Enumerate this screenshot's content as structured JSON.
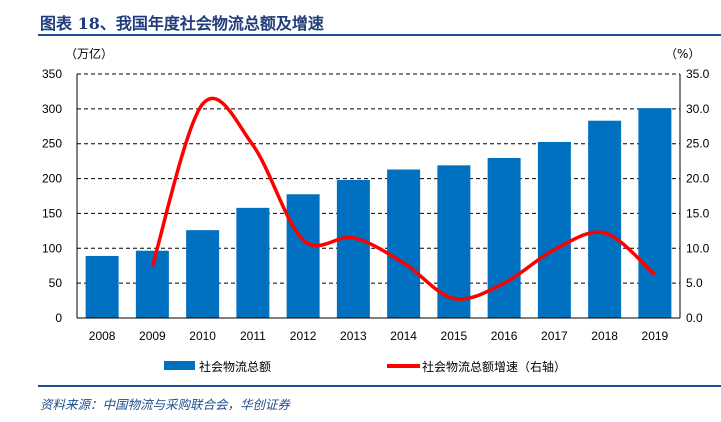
{
  "header": {
    "title": "图表 18、我国年度社会物流总额及增速"
  },
  "source": "资料来源：中国物流与采购联合会，华创证券",
  "chart_data": {
    "type": "bar+line",
    "title": "",
    "categories": [
      "2008",
      "2009",
      "2010",
      "2011",
      "2012",
      "2013",
      "2014",
      "2015",
      "2016",
      "2017",
      "2018",
      "2019"
    ],
    "series": [
      {
        "name": "社会物流总额",
        "type": "bar",
        "axis": "left",
        "color": "#0070C0",
        "values": [
          89,
          96.5,
          126,
          158,
          177.5,
          198,
          213,
          219,
          229.5,
          252.5,
          283,
          301
        ]
      },
      {
        "name": "社会物流总额增速（右轴）",
        "type": "line",
        "axis": "right",
        "color": "#FF0000",
        "values": [
          null,
          7.4,
          30.7,
          24.8,
          11.2,
          11.5,
          7.9,
          2.8,
          5.0,
          9.8,
          12.2,
          6.2
        ]
      }
    ],
    "ylabel_left": "（万亿）",
    "ylabel_right": "（%）",
    "ylim_left": [
      0,
      350
    ],
    "ylim_right": [
      0,
      35
    ],
    "yticks_left": [
      "0",
      "50",
      "100",
      "150",
      "200",
      "250",
      "300",
      "350"
    ],
    "yticks_right": [
      "0.0",
      "5.0",
      "10.0",
      "15.0",
      "20.0",
      "25.0",
      "30.0",
      "35.0"
    ],
    "grid": "dashed horizontal",
    "legend": "bottom"
  }
}
